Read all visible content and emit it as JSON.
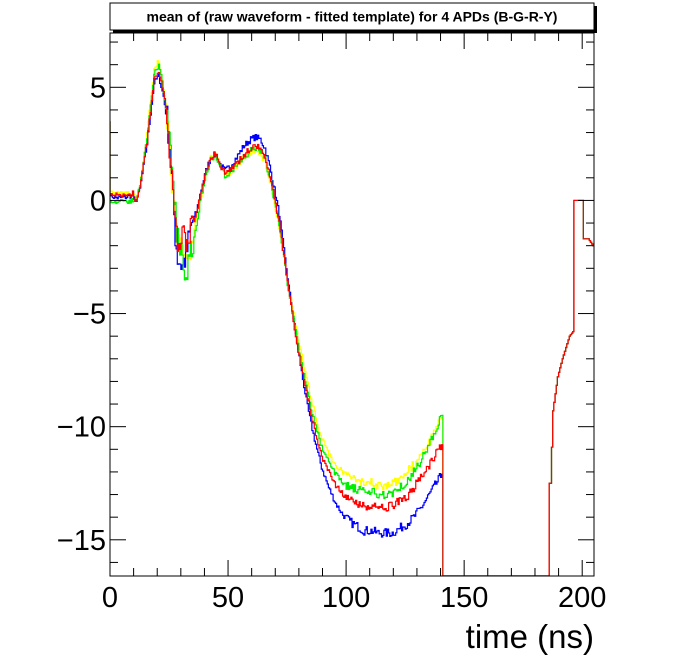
{
  "chart_data": {
    "type": "line",
    "title": "mean of (raw waveform - fitted template) for 4 APDs (B-G-R-Y)",
    "xlabel": "time (ns)",
    "ylabel": "",
    "xlim": [
      0,
      205
    ],
    "ylim": [
      -16.6,
      7.4
    ],
    "x_ticks": [
      0,
      50,
      100,
      150,
      200
    ],
    "x_tick_labels": [
      "0",
      "50",
      "100",
      "150",
      "200"
    ],
    "y_ticks": [
      5,
      0,
      -5,
      -10,
      -15
    ],
    "y_tick_labels": [
      "5",
      "0",
      "−5",
      "−10",
      "−15"
    ],
    "grid": false,
    "legend": "none",
    "series": [
      {
        "color": "#0000ff",
        "points": [
          [
            0,
            3.5
          ],
          [
            0.5,
            0.2
          ],
          [
            4,
            0.1
          ],
          [
            10,
            0.2
          ],
          [
            11,
            -0.1
          ],
          [
            13,
            0.5
          ],
          [
            16,
            2.5
          ],
          [
            19,
            5.2
          ],
          [
            21,
            5.5
          ],
          [
            23,
            4.6
          ],
          [
            25,
            3.2
          ],
          [
            27,
            0.2
          ],
          [
            28,
            -1.5
          ],
          [
            29,
            -2.5
          ],
          [
            31,
            -2.9
          ],
          [
            33,
            -2.2
          ],
          [
            35,
            -1.0
          ],
          [
            37,
            -0.5
          ],
          [
            39,
            0.5
          ],
          [
            41,
            1.3
          ],
          [
            43,
            1.9
          ],
          [
            45,
            2.0
          ],
          [
            47,
            1.6
          ],
          [
            49,
            1.3
          ],
          [
            51,
            1.5
          ],
          [
            54,
            1.9
          ],
          [
            57,
            2.4
          ],
          [
            60,
            2.7
          ],
          [
            62,
            2.8
          ],
          [
            64,
            2.7
          ],
          [
            66,
            2.3
          ],
          [
            68,
            1.5
          ],
          [
            70,
            0.5
          ],
          [
            72,
            -0.6
          ],
          [
            74,
            -2.2
          ],
          [
            76,
            -3.8
          ],
          [
            78,
            -5.2
          ],
          [
            80,
            -6.6
          ],
          [
            82,
            -7.9
          ],
          [
            84,
            -9.1
          ],
          [
            86,
            -10.1
          ],
          [
            88,
            -11.0
          ],
          [
            90,
            -11.8
          ],
          [
            93,
            -12.7
          ],
          [
            96,
            -13.4
          ],
          [
            99,
            -13.9
          ],
          [
            102,
            -14.2
          ],
          [
            105,
            -14.4
          ],
          [
            108,
            -14.6
          ],
          [
            111,
            -14.6
          ],
          [
            114,
            -14.7
          ],
          [
            117,
            -14.7
          ],
          [
            120,
            -14.7
          ],
          [
            123,
            -14.5
          ],
          [
            126,
            -14.3
          ],
          [
            129,
            -14.0
          ],
          [
            132,
            -13.6
          ],
          [
            135,
            -13.1
          ],
          [
            138,
            -12.6
          ],
          [
            141,
            -12.1
          ],
          [
            141.5,
            -16.6
          ],
          [
            186,
            -16.6
          ],
          [
            187,
            -12.5
          ],
          [
            188,
            -9.3
          ],
          [
            190,
            -7.8
          ],
          [
            192,
            -7.0
          ],
          [
            195,
            -6.0
          ],
          [
            196.5,
            -5.8
          ],
          [
            197,
            0.0
          ],
          [
            200.5,
            0.0
          ],
          [
            201,
            -1.7
          ],
          [
            203,
            -1.7
          ],
          [
            205,
            -2.0
          ]
        ]
      },
      {
        "color": "#00ee00",
        "points": [
          [
            0,
            3.5
          ],
          [
            0.5,
            0.0
          ],
          [
            4,
            -0.1
          ],
          [
            10,
            0.0
          ],
          [
            11,
            -0.1
          ],
          [
            13,
            0.6
          ],
          [
            16,
            2.8
          ],
          [
            19,
            5.6
          ],
          [
            21,
            6.0
          ],
          [
            23,
            4.9
          ],
          [
            25,
            3.4
          ],
          [
            27,
            0.2
          ],
          [
            29,
            -1.8
          ],
          [
            31,
            -2.6
          ],
          [
            33,
            -3.0
          ],
          [
            35,
            -2.0
          ],
          [
            37,
            -1.0
          ],
          [
            39,
            0.2
          ],
          [
            41,
            1.2
          ],
          [
            43,
            1.8
          ],
          [
            45,
            2.0
          ],
          [
            47,
            1.5
          ],
          [
            49,
            1.1
          ],
          [
            51,
            1.2
          ],
          [
            54,
            1.5
          ],
          [
            57,
            1.9
          ],
          [
            60,
            2.2
          ],
          [
            62,
            2.3
          ],
          [
            64,
            2.2
          ],
          [
            66,
            1.8
          ],
          [
            68,
            1.0
          ],
          [
            70,
            0.0
          ],
          [
            72,
            -1.1
          ],
          [
            74,
            -2.6
          ],
          [
            76,
            -4.0
          ],
          [
            78,
            -5.2
          ],
          [
            80,
            -6.4
          ],
          [
            82,
            -7.5
          ],
          [
            84,
            -8.5
          ],
          [
            86,
            -9.4
          ],
          [
            88,
            -10.2
          ],
          [
            90,
            -10.9
          ],
          [
            93,
            -11.6
          ],
          [
            96,
            -12.1
          ],
          [
            99,
            -12.5
          ],
          [
            102,
            -12.7
          ],
          [
            105,
            -12.8
          ],
          [
            108,
            -12.9
          ],
          [
            111,
            -12.9
          ],
          [
            114,
            -13.0
          ],
          [
            117,
            -13.0
          ],
          [
            120,
            -12.9
          ],
          [
            123,
            -12.7
          ],
          [
            126,
            -12.4
          ],
          [
            129,
            -12.0
          ],
          [
            132,
            -11.5
          ],
          [
            135,
            -10.9
          ],
          [
            138,
            -10.2
          ],
          [
            141,
            -9.5
          ],
          [
            141.5,
            -16.6
          ],
          [
            186,
            -16.6
          ],
          [
            187,
            -12.5
          ],
          [
            188,
            -9.3
          ],
          [
            190,
            -7.8
          ],
          [
            192,
            -7.0
          ],
          [
            195,
            -6.0
          ],
          [
            196.5,
            -5.8
          ],
          [
            197,
            0.0
          ],
          [
            200.5,
            0.0
          ],
          [
            201,
            -1.7
          ],
          [
            203,
            -1.7
          ],
          [
            205,
            -2.0
          ]
        ]
      },
      {
        "color": "#ff0000",
        "points": [
          [
            0,
            3.5
          ],
          [
            0.5,
            0.3
          ],
          [
            4,
            0.2
          ],
          [
            10,
            0.3
          ],
          [
            11,
            -0.1
          ],
          [
            13,
            0.5
          ],
          [
            16,
            2.6
          ],
          [
            19,
            5.4
          ],
          [
            21,
            5.7
          ],
          [
            23,
            4.8
          ],
          [
            25,
            3.2
          ],
          [
            27,
            -0.2
          ],
          [
            29,
            -2.2
          ],
          [
            31,
            -1.5
          ],
          [
            33,
            -2.3
          ],
          [
            35,
            -1.2
          ],
          [
            37,
            -0.6
          ],
          [
            39,
            0.4
          ],
          [
            41,
            1.3
          ],
          [
            43,
            1.9
          ],
          [
            45,
            2.1
          ],
          [
            47,
            1.6
          ],
          [
            49,
            1.2
          ],
          [
            51,
            1.3
          ],
          [
            54,
            1.6
          ],
          [
            57,
            2.0
          ],
          [
            60,
            2.3
          ],
          [
            62,
            2.4
          ],
          [
            64,
            2.3
          ],
          [
            66,
            1.9
          ],
          [
            68,
            1.1
          ],
          [
            70,
            0.1
          ],
          [
            72,
            -1.0
          ],
          [
            74,
            -2.5
          ],
          [
            76,
            -4.0
          ],
          [
            78,
            -5.3
          ],
          [
            80,
            -6.6
          ],
          [
            82,
            -7.7
          ],
          [
            84,
            -8.7
          ],
          [
            86,
            -9.7
          ],
          [
            88,
            -10.5
          ],
          [
            90,
            -11.3
          ],
          [
            93,
            -12.0
          ],
          [
            96,
            -12.6
          ],
          [
            99,
            -13.0
          ],
          [
            102,
            -13.3
          ],
          [
            105,
            -13.4
          ],
          [
            108,
            -13.5
          ],
          [
            111,
            -13.5
          ],
          [
            114,
            -13.6
          ],
          [
            117,
            -13.6
          ],
          [
            120,
            -13.5
          ],
          [
            123,
            -13.3
          ],
          [
            126,
            -13.1
          ],
          [
            129,
            -12.7
          ],
          [
            132,
            -12.3
          ],
          [
            135,
            -11.8
          ],
          [
            138,
            -11.3
          ],
          [
            141,
            -10.8
          ],
          [
            141.5,
            -16.6
          ],
          [
            186,
            -16.6
          ],
          [
            187,
            -12.5
          ],
          [
            188,
            -9.3
          ],
          [
            190,
            -7.8
          ],
          [
            192,
            -7.0
          ],
          [
            195,
            -6.0
          ],
          [
            196.5,
            -5.8
          ],
          [
            197,
            0.0
          ],
          [
            200.5,
            0.0
          ],
          [
            201,
            -1.7
          ],
          [
            203,
            -1.7
          ],
          [
            205,
            -2.0
          ]
        ]
      },
      {
        "color": "#ffff00",
        "points": [
          [
            0,
            3.5
          ],
          [
            0.5,
            0.4
          ],
          [
            4,
            0.3
          ],
          [
            10,
            0.3
          ],
          [
            11,
            0.0
          ],
          [
            13,
            0.6
          ],
          [
            16,
            2.9
          ],
          [
            19,
            5.8
          ],
          [
            21,
            6.2
          ],
          [
            23,
            5.0
          ],
          [
            25,
            3.4
          ],
          [
            27,
            0.1
          ],
          [
            29,
            -1.6
          ],
          [
            31,
            -2.4
          ],
          [
            33,
            -2.7
          ],
          [
            35,
            -1.8
          ],
          [
            37,
            -0.8
          ],
          [
            39,
            0.3
          ],
          [
            41,
            1.3
          ],
          [
            43,
            1.9
          ],
          [
            45,
            2.1
          ],
          [
            47,
            1.6
          ],
          [
            49,
            1.2
          ],
          [
            51,
            1.2
          ],
          [
            54,
            1.5
          ],
          [
            57,
            1.9
          ],
          [
            60,
            2.1
          ],
          [
            62,
            2.2
          ],
          [
            64,
            2.1
          ],
          [
            66,
            1.7
          ],
          [
            68,
            0.9
          ],
          [
            70,
            -0.1
          ],
          [
            72,
            -1.2
          ],
          [
            74,
            -2.6
          ],
          [
            76,
            -3.9
          ],
          [
            78,
            -5.0
          ],
          [
            80,
            -6.1
          ],
          [
            82,
            -7.1
          ],
          [
            84,
            -8.1
          ],
          [
            86,
            -9.0
          ],
          [
            88,
            -9.8
          ],
          [
            90,
            -10.5
          ],
          [
            93,
            -11.2
          ],
          [
            96,
            -11.7
          ],
          [
            99,
            -12.0
          ],
          [
            102,
            -12.3
          ],
          [
            105,
            -12.4
          ],
          [
            108,
            -12.5
          ],
          [
            111,
            -12.5
          ],
          [
            114,
            -12.6
          ],
          [
            117,
            -12.6
          ],
          [
            120,
            -12.5
          ],
          [
            123,
            -12.3
          ],
          [
            126,
            -12.0
          ],
          [
            129,
            -11.7
          ],
          [
            132,
            -11.3
          ],
          [
            135,
            -10.8
          ],
          [
            138,
            -10.2
          ],
          [
            141,
            -9.6
          ],
          [
            141.5,
            -16.6
          ],
          [
            186,
            -16.6
          ],
          [
            187,
            -12.5
          ],
          [
            188,
            -9.3
          ],
          [
            190,
            -7.8
          ],
          [
            192,
            -7.0
          ],
          [
            195,
            -6.0
          ],
          [
            196.5,
            -5.8
          ],
          [
            197,
            0.0
          ],
          [
            200.5,
            0.0
          ],
          [
            201,
            -1.7
          ],
          [
            203,
            -1.7
          ],
          [
            205,
            -2.0
          ]
        ]
      }
    ],
    "draw_order": [
      3,
      0,
      1,
      2
    ]
  }
}
